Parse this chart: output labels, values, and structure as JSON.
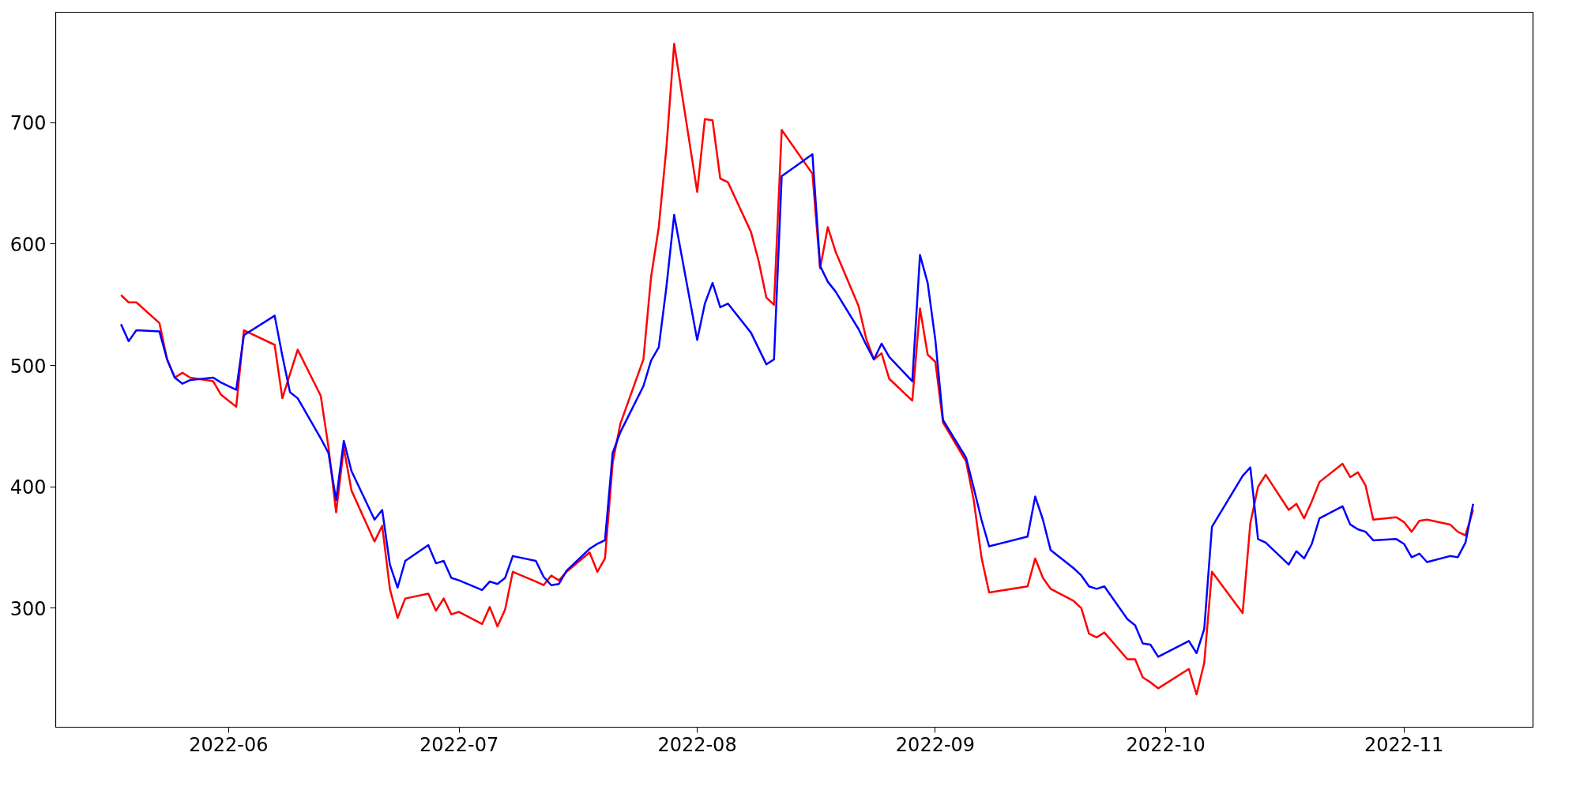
{
  "chart_data": {
    "type": "line",
    "x": [
      "2022-05-18",
      "2022-05-19",
      "2022-05-20",
      "2022-05-23",
      "2022-05-24",
      "2022-05-25",
      "2022-05-26",
      "2022-05-27",
      "2022-05-30",
      "2022-05-31",
      "2022-06-02",
      "2022-06-03",
      "2022-06-07",
      "2022-06-08",
      "2022-06-09",
      "2022-06-10",
      "2022-06-13",
      "2022-06-14",
      "2022-06-15",
      "2022-06-16",
      "2022-06-17",
      "2022-06-20",
      "2022-06-21",
      "2022-06-22",
      "2022-06-23",
      "2022-06-24",
      "2022-06-27",
      "2022-06-28",
      "2022-06-29",
      "2022-06-30",
      "2022-07-01",
      "2022-07-04",
      "2022-07-05",
      "2022-07-06",
      "2022-07-07",
      "2022-07-08",
      "2022-07-11",
      "2022-07-12",
      "2022-07-13",
      "2022-07-14",
      "2022-07-15",
      "2022-07-18",
      "2022-07-19",
      "2022-07-20",
      "2022-07-21",
      "2022-07-22",
      "2022-07-25",
      "2022-07-26",
      "2022-07-27",
      "2022-07-28",
      "2022-07-29",
      "2022-08-01",
      "2022-08-02",
      "2022-08-03",
      "2022-08-04",
      "2022-08-05",
      "2022-08-08",
      "2022-08-09",
      "2022-08-10",
      "2022-08-11",
      "2022-08-12",
      "2022-08-16",
      "2022-08-17",
      "2022-08-18",
      "2022-08-19",
      "2022-08-22",
      "2022-08-23",
      "2022-08-24",
      "2022-08-25",
      "2022-08-26",
      "2022-08-29",
      "2022-08-30",
      "2022-08-31",
      "2022-09-01",
      "2022-09-02",
      "2022-09-05",
      "2022-09-06",
      "2022-09-07",
      "2022-09-08",
      "2022-09-13",
      "2022-09-14",
      "2022-09-15",
      "2022-09-16",
      "2022-09-19",
      "2022-09-20",
      "2022-09-21",
      "2022-09-22",
      "2022-09-23",
      "2022-09-26",
      "2022-09-27",
      "2022-09-28",
      "2022-09-29",
      "2022-09-30",
      "2022-10-04",
      "2022-10-05",
      "2022-10-06",
      "2022-10-07",
      "2022-10-11",
      "2022-10-12",
      "2022-10-13",
      "2022-10-14",
      "2022-10-17",
      "2022-10-18",
      "2022-10-19",
      "2022-10-20",
      "2022-10-21",
      "2022-10-24",
      "2022-10-25",
      "2022-10-26",
      "2022-10-27",
      "2022-10-28",
      "2022-10-31",
      "2022-11-01",
      "2022-11-02",
      "2022-11-03",
      "2022-11-04",
      "2022-11-07",
      "2022-11-08",
      "2022-11-09",
      "2022-11-10"
    ],
    "series": [
      {
        "color": "#ff0000",
        "values": [
          558,
          552,
          552,
          535,
          505,
          490,
          494,
          490,
          487,
          476,
          466,
          529,
          517,
          473,
          493,
          513,
          475,
          433,
          379,
          432,
          397,
          355,
          368,
          316,
          292,
          308,
          312,
          298,
          308,
          295,
          297,
          287,
          301,
          285,
          299,
          330,
          322,
          319,
          327,
          323,
          330,
          346,
          330,
          341,
          420,
          452,
          505,
          573,
          614,
          680,
          765,
          643,
          703,
          702,
          654,
          651,
          610,
          586,
          556,
          550,
          694,
          658,
          580,
          614,
          594,
          549,
          522,
          505,
          510,
          489,
          471,
          547,
          509,
          503,
          453,
          421,
          389,
          342,
          313,
          318,
          341,
          325,
          316,
          306,
          300,
          279,
          276,
          280,
          258,
          258,
          243,
          239,
          234,
          250,
          229,
          255,
          330,
          296,
          370,
          400,
          410,
          381,
          386,
          374,
          388,
          404,
          419,
          408,
          412,
          401,
          373,
          375,
          371,
          363,
          372,
          373,
          369,
          363,
          360,
          381
        ]
      },
      {
        "color": "#0000ff",
        "values": [
          534,
          520,
          529,
          528,
          505,
          490,
          485,
          488,
          490,
          486,
          480,
          525,
          541,
          508,
          478,
          473,
          440,
          428,
          389,
          438,
          413,
          373,
          381,
          336,
          317,
          339,
          352,
          337,
          339,
          325,
          323,
          315,
          322,
          320,
          325,
          343,
          339,
          326,
          319,
          320,
          331,
          349,
          353,
          356,
          428,
          445,
          483,
          504,
          515,
          565,
          624,
          521,
          551,
          568,
          548,
          551,
          527,
          514,
          501,
          505,
          656,
          674,
          582,
          569,
          561,
          530,
          517,
          505,
          518,
          507,
          487,
          591,
          568,
          521,
          455,
          424,
          399,
          373,
          351,
          359,
          392,
          373,
          348,
          333,
          327,
          318,
          316,
          318,
          291,
          286,
          271,
          270,
          260,
          273,
          263,
          283,
          367,
          409,
          416,
          357,
          354,
          336,
          347,
          341,
          353,
          374,
          384,
          369,
          365,
          363,
          356,
          357,
          353,
          342,
          345,
          338,
          343,
          342,
          354,
          386
        ]
      }
    ],
    "xlim": [
      "2022-05-09T12:00",
      "2022-11-17T19:00"
    ],
    "xticks": [
      {
        "value": "2022-06-01",
        "label": "2022-06"
      },
      {
        "value": "2022-07-01",
        "label": "2022-07"
      },
      {
        "value": "2022-08-01",
        "label": "2022-08"
      },
      {
        "value": "2022-09-01",
        "label": "2022-09"
      },
      {
        "value": "2022-10-01",
        "label": "2022-10"
      },
      {
        "value": "2022-11-01",
        "label": "2022-11"
      }
    ],
    "ylim": [
      202,
      791
    ],
    "yticks": [
      300,
      400,
      500,
      600,
      700
    ],
    "grid": false,
    "line_style": "solid"
  }
}
